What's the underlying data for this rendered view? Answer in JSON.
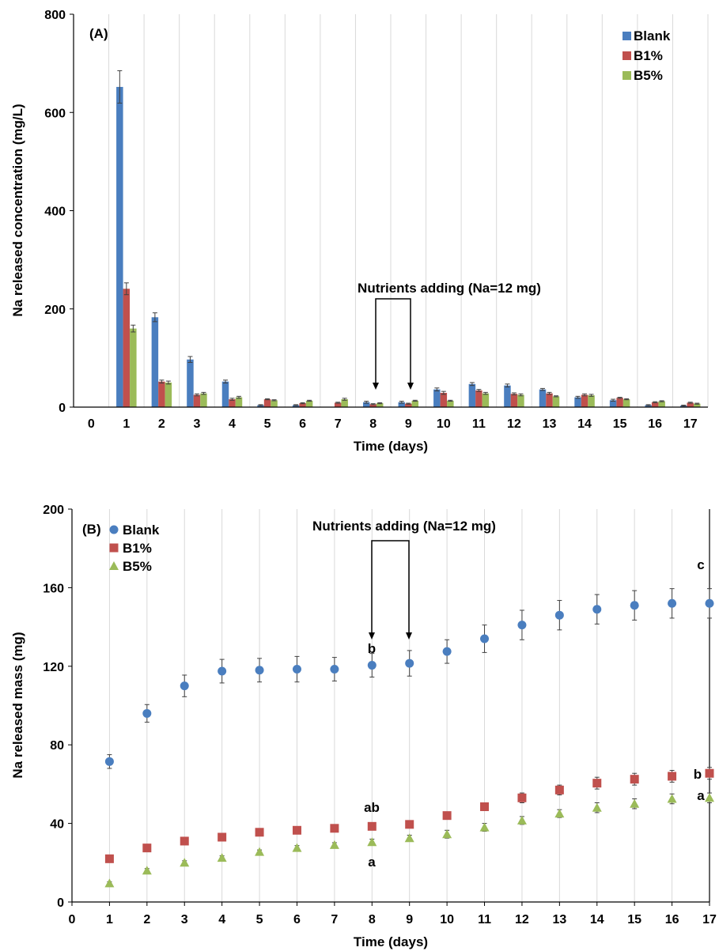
{
  "colors": {
    "blank": "#4a7ebf",
    "b1": "#c0504d",
    "b5": "#9bbb59",
    "grid": "#d9d9d9",
    "error_bar": "#404040"
  },
  "chart_data": [
    {
      "panel": "(A)",
      "type": "bar",
      "xlabel": "Time (days)",
      "ylabel": "Na released concentration (mg/L)",
      "ylim": [
        0,
        800
      ],
      "yticks": [
        "0",
        "200",
        "400",
        "600",
        "800"
      ],
      "categories": [
        "0",
        "1",
        "2",
        "3",
        "4",
        "5",
        "6",
        "7",
        "8",
        "9",
        "10",
        "11",
        "12",
        "13",
        "14",
        "15",
        "16",
        "17"
      ],
      "grid": "vertical gridlines",
      "legend_position": "top-right",
      "series": [
        {
          "name": "Blank",
          "values": [
            null,
            652,
            183,
            97,
            52,
            4,
            4,
            0,
            10,
            10,
            36,
            47,
            44,
            36,
            20,
            14,
            4,
            3
          ],
          "errors": [
            0,
            33,
            9,
            6,
            3,
            1,
            1,
            0,
            2,
            2,
            3,
            3,
            3,
            2,
            2,
            2,
            1,
            1
          ]
        },
        {
          "name": "B1%",
          "values": [
            null,
            241,
            52,
            25,
            16,
            16,
            8,
            9,
            6,
            7,
            29,
            34,
            27,
            28,
            25,
            19,
            10,
            9
          ],
          "errors": [
            0,
            12,
            3,
            2,
            2,
            1,
            1,
            1,
            1,
            1,
            3,
            2,
            2,
            2,
            2,
            1,
            1,
            1
          ]
        },
        {
          "name": "B5%",
          "values": [
            null,
            160,
            50,
            28,
            20,
            14,
            13,
            16,
            8,
            13,
            13,
            28,
            25,
            22,
            24,
            16,
            12,
            7
          ],
          "errors": [
            0,
            7,
            3,
            2,
            2,
            1,
            1,
            2,
            1,
            1,
            1,
            2,
            2,
            1,
            2,
            1,
            1,
            1
          ]
        }
      ],
      "annotation": "Nutrients  adding (Na=12 mg)"
    },
    {
      "panel": "(B)",
      "type": "scatter",
      "xlabel": "Time (days)",
      "ylabel": "Na released mass (mg)",
      "xlim": [
        0,
        17
      ],
      "ylim": [
        0,
        200
      ],
      "xticks": [
        "0",
        "1",
        "2",
        "3",
        "4",
        "5",
        "6",
        "7",
        "8",
        "9",
        "10",
        "11",
        "12",
        "13",
        "14",
        "15",
        "16",
        "17"
      ],
      "yticks": [
        "0",
        "40",
        "80",
        "120",
        "160",
        "200"
      ],
      "grid": "vertical gridlines",
      "legend_position": "top-left",
      "x": [
        1,
        2,
        3,
        4,
        5,
        6,
        7,
        8,
        9,
        10,
        11,
        12,
        13,
        14,
        15,
        16,
        17
      ],
      "series": [
        {
          "name": "Blank",
          "marker": "circle",
          "values": [
            71.5,
            96,
            110,
            117.5,
            118,
            118.5,
            118.5,
            120.5,
            121.5,
            127.5,
            134,
            141,
            146,
            149,
            151,
            152,
            152
          ],
          "errors": [
            3.5,
            4.5,
            5.5,
            6,
            6,
            6.5,
            6,
            6,
            6.5,
            6,
            7,
            7.5,
            7.5,
            7.5,
            7.5,
            7.5,
            7.5
          ]
        },
        {
          "name": "B1%",
          "marker": "square",
          "values": [
            22,
            27.5,
            31,
            33,
            35.5,
            36.5,
            37.5,
            38.5,
            39.5,
            44,
            48.5,
            53,
            57,
            60.5,
            62.5,
            64,
            65.5
          ],
          "errors": [
            0.8,
            1,
            1,
            1,
            1,
            1,
            1,
            1,
            1.2,
            1.5,
            2,
            2.5,
            2.5,
            3,
            3,
            3,
            3
          ]
        },
        {
          "name": "B5%",
          "marker": "triangle",
          "values": [
            9.5,
            16,
            20,
            22.5,
            25.5,
            27.5,
            29,
            30.5,
            32.5,
            34.5,
            38,
            41.5,
            45,
            48,
            50,
            52.5,
            53
          ],
          "errors": [
            0.8,
            1,
            1,
            1,
            1,
            1.2,
            1.2,
            1.5,
            1.5,
            2,
            2,
            2,
            2,
            2.5,
            2.5,
            2.5,
            2.5
          ]
        }
      ],
      "annotation": "Nutrients  adding (Na=12 mg)",
      "significance_labels": [
        "b",
        "ab",
        "a",
        "c",
        "b",
        "a"
      ]
    }
  ]
}
